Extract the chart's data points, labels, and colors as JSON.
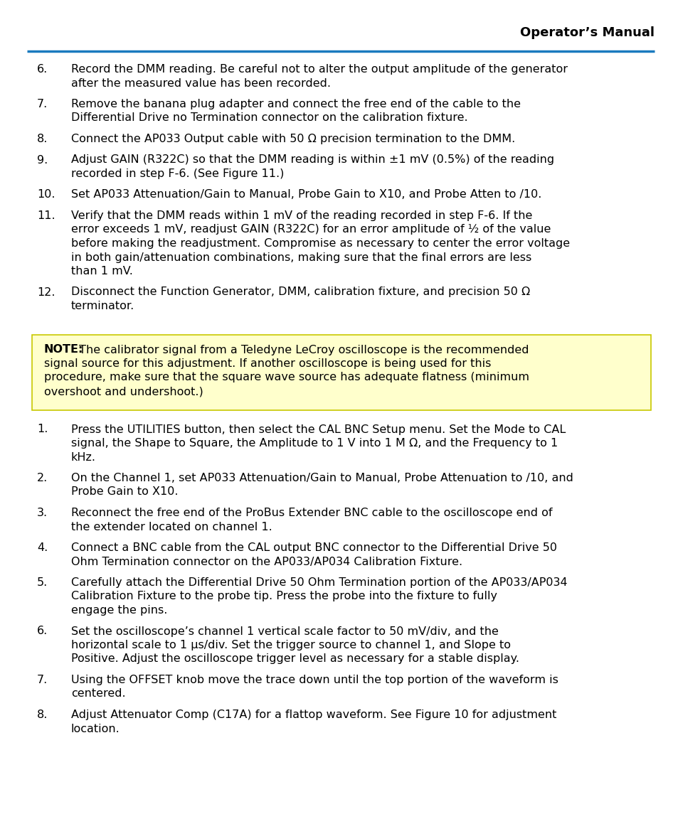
{
  "header_title": "Operator’s Manual",
  "header_line_color": "#1a7abf",
  "background_color": "#ffffff",
  "text_color": "#000000",
  "note_bg_color": "#ffffcc",
  "note_border_color": "#c8c800",
  "items_section1": [
    {
      "num": "6.",
      "text": "Record the DMM reading. Be careful not to alter the output amplitude of the generator after the measured value has been recorded."
    },
    {
      "num": "7.",
      "text": "Remove the banana plug adapter and connect the free end of the cable to the Differential Drive no Termination connector on the calibration fixture."
    },
    {
      "num": "8.",
      "text": "Connect the AP033 Output cable with 50 Ω precision termination to the DMM."
    },
    {
      "num": "9.",
      "text": "Adjust GAIN (R322C) so that the DMM reading is within ±1 mV (0.5%) of the reading recorded in step F-6. (See Figure 11.)"
    },
    {
      "num": "10.",
      "text": "Set AP033 Attenuation/Gain to Manual, Probe Gain to X10, and Probe Atten to /10."
    },
    {
      "num": "11.",
      "text": "Verify that the DMM reads within 1 mV of the reading recorded in step F-6. If the error exceeds 1 mV, readjust GAIN (R322C) for an error amplitude of ½ of the value before making the readjustment. Compromise as necessary to center the error voltage in both gain/attenuation combinations, making sure that the final errors are less than 1 mV."
    },
    {
      "num": "12.",
      "text": "Disconnect the Function Generator, DMM, calibration fixture, and precision 50 Ω terminator."
    }
  ],
  "note_text_bold": "NOTE:",
  "note_text": " The calibrator signal from a Teledyne LeCroy oscilloscope is the recommended signal source for this adjustment. If another oscilloscope is being used for this procedure, make sure that the square wave source has adequate flatness (minimum overshoot and undershoot.)",
  "items_section2": [
    {
      "num": "1.",
      "text": "Press the UTILITIES button, then select the CAL BNC Setup menu. Set the Mode to CAL signal, the Shape to Square, the Amplitude to 1 V into 1 M Ω, and the Frequency to 1 kHz."
    },
    {
      "num": "2.",
      "text": "On the Channel 1, set AP033 Attenuation/Gain to Manual, Probe Attenuation to /10, and Probe Gain to X10."
    },
    {
      "num": "3.",
      "text": "Reconnect the free end of the ProBus Extender BNC cable to the oscilloscope end of the extender located on channel 1."
    },
    {
      "num": "4.",
      "text": "Connect a BNC cable from the CAL output BNC connector to the Differential Drive 50 Ohm Termination connector on the AP033/AP034 Calibration Fixture."
    },
    {
      "num": "5.",
      "text": "Carefully attach the Differential Drive 50 Ohm Termination portion of the AP033/AP034 Calibration Fixture to the probe tip. Press the probe into the fixture to fully engage the pins."
    },
    {
      "num": "6.",
      "text": "Set the oscilloscope’s channel 1 vertical scale factor to 50 mV/div, and the horizontal scale to 1 μs/div. Set the trigger source to channel 1, and Slope to Positive. Adjust the oscilloscope trigger level as necessary for a stable display."
    },
    {
      "num": "7.",
      "text": "Using the OFFSET knob move the trace down until the top portion of the waveform is centered."
    },
    {
      "num": "8.",
      "text": "Adjust Attenuator Comp (C17A) for a flattop waveform. See Figure 10 for adjustment location."
    }
  ],
  "font_size": 11.5,
  "header_font_size": 13
}
